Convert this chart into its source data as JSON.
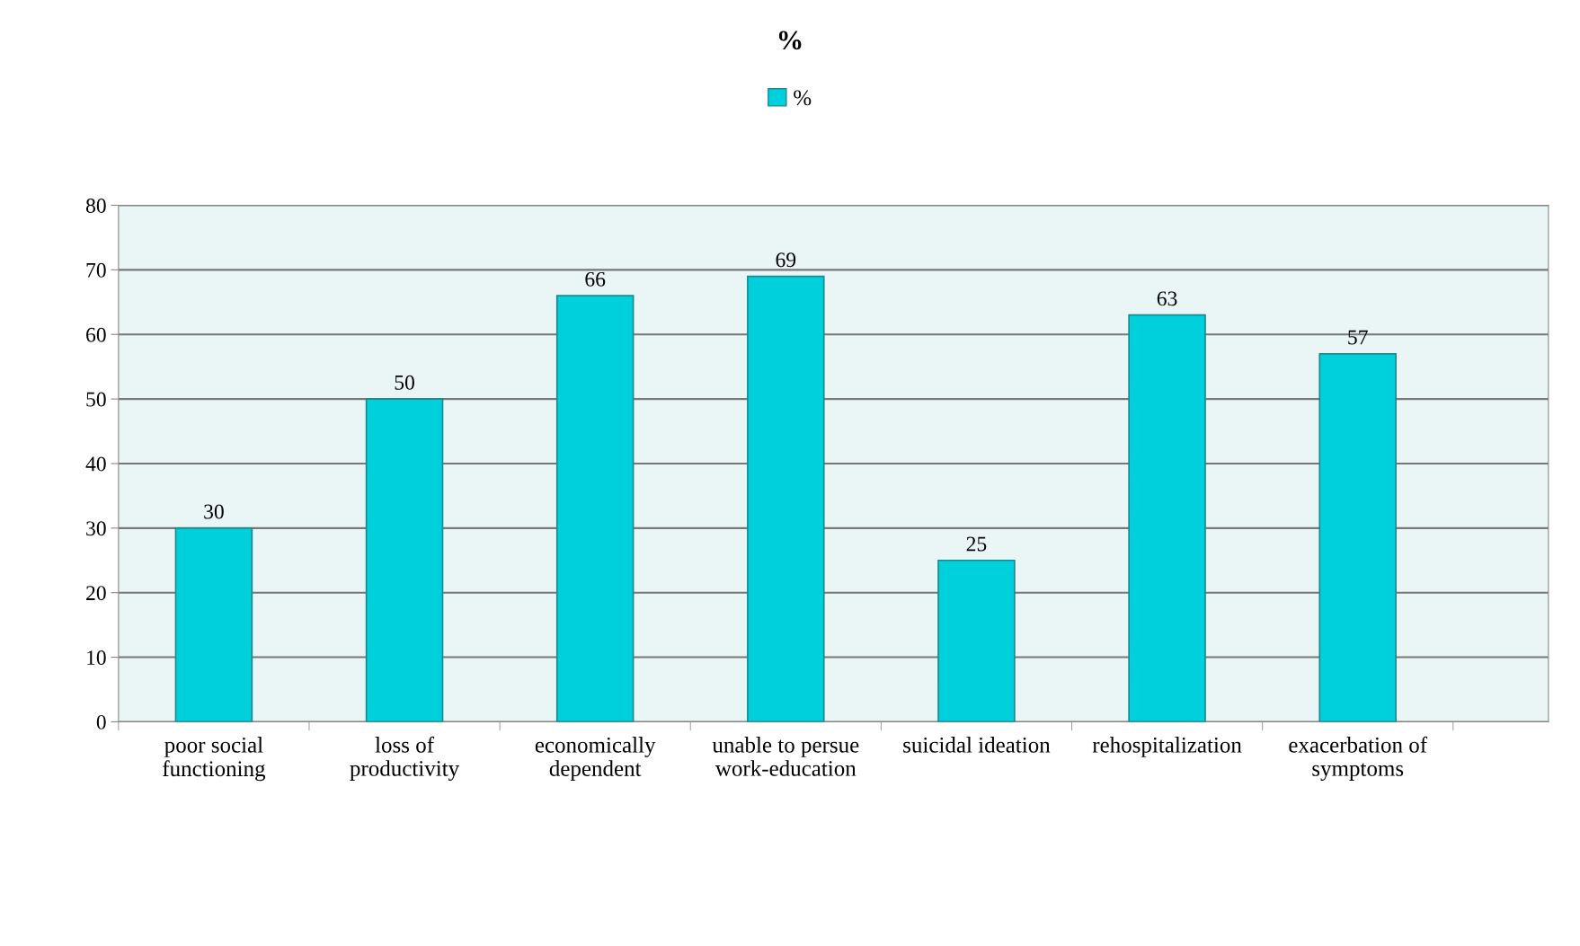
{
  "chart_data": {
    "type": "bar",
    "title": "%",
    "categories": [
      "poor social\nfunctioning",
      "loss of\nproductivity",
      "economically\ndependent",
      "unable to persue\nwork-education",
      "suicidal ideation",
      "rehospitalization",
      "exacerbation of\nsymptoms"
    ],
    "series": [
      {
        "name": "%",
        "color": "#00d0dc",
        "values": [
          30,
          50,
          66,
          69,
          25,
          63,
          57
        ]
      }
    ],
    "ylim": [
      0,
      80
    ],
    "yticks": [
      0,
      10,
      20,
      30,
      40,
      50,
      60,
      70,
      80
    ],
    "grid": "y",
    "legend": "top",
    "data_labels": true
  }
}
